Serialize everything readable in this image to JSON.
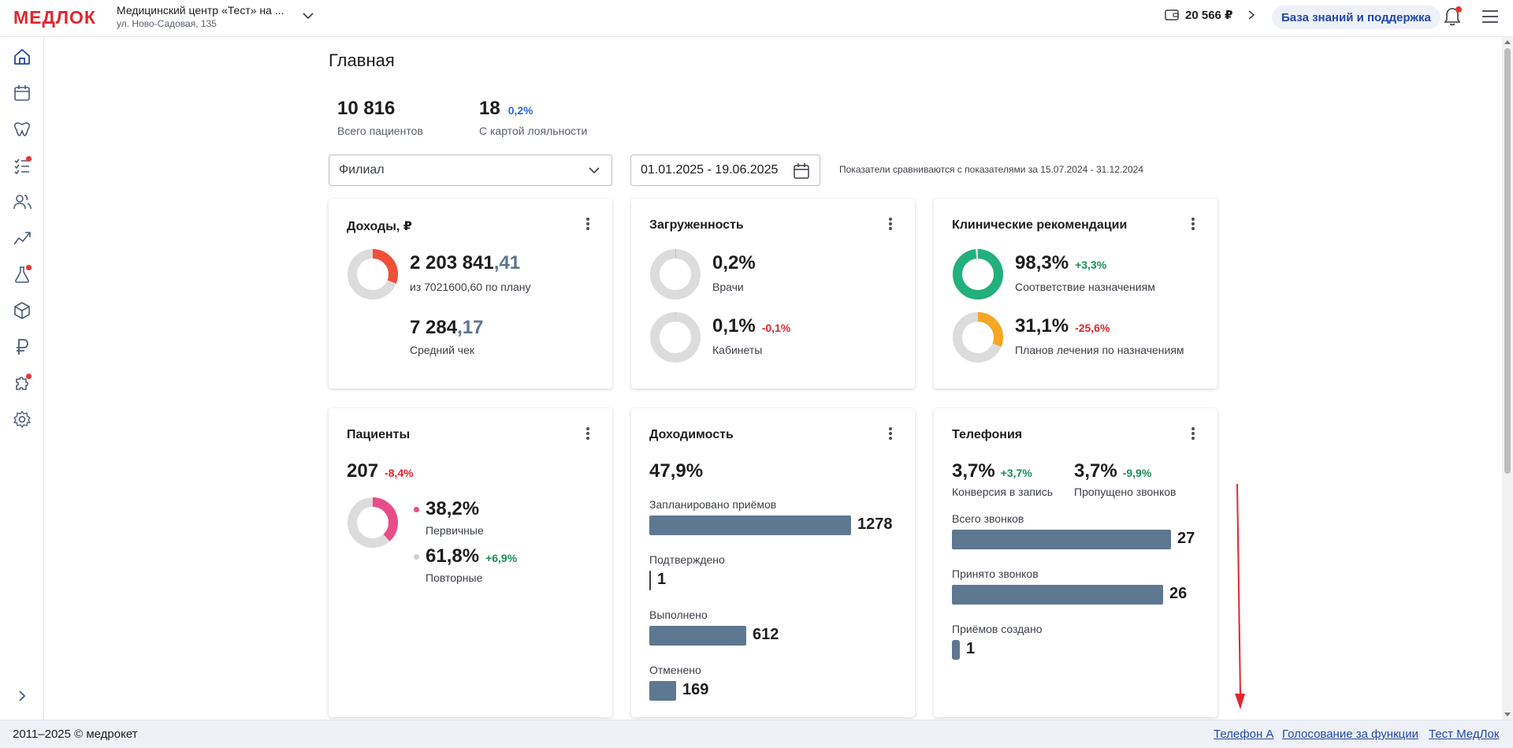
{
  "header": {
    "logo": "МЕДЛОК",
    "org_name": "Медицинский центр «Тест» на ...",
    "org_address": "ул. Ново-Садовая, 135",
    "balance": "20 566 ₽",
    "knowledge_base": "База знаний и поддержка"
  },
  "sidebar": {
    "items": [
      "home-icon",
      "calendar-icon",
      "dental-icon",
      "tasks-icon",
      "users-icon",
      "analytics-icon",
      "lab-flask-icon",
      "warehouse-box-icon",
      "ruble-icon",
      "puzzle-icon",
      "settings-gear-icon"
    ]
  },
  "page": {
    "title": "Главная",
    "total_patients_value": "10 816",
    "total_patients_label": "Всего пациентов",
    "loyalty_value": "18",
    "loyalty_delta": "0,2%",
    "loyalty_label": "С картой лояльности"
  },
  "filters": {
    "branch_placeholder": "Филиал",
    "date_range": "01.01.2025 - 19.06.2025",
    "compare_note": "Показатели сравниваются с показателями за 15.07.2024 - 31.12.2024"
  },
  "cards": {
    "income": {
      "title": "Доходы, ₽",
      "amount_int": "2 203 841",
      "amount_frac": ",41",
      "plan_text": "из 7021600,60 по плану",
      "plan_fraction": 0.31,
      "avg_int": "7 284",
      "avg_frac": ",17",
      "avg_label": "Средний чек"
    },
    "load": {
      "title": "Загруженность",
      "doctors_value": "0,2%",
      "doctors_fraction": 0.002,
      "doctors_label": "Врачи",
      "rooms_value": "0,1%",
      "rooms_fraction": 0.001,
      "rooms_delta": "-0,1%",
      "rooms_label": "Кабинеты"
    },
    "clinical": {
      "title": "Клинические рекомендации",
      "compliance_value": "98,3%",
      "compliance_fraction": 0.983,
      "compliance_delta": "+3,3%",
      "compliance_label": "Соответствие назначениям",
      "plans_value": "31,1%",
      "plans_fraction": 0.311,
      "plans_delta": "-25,6%",
      "plans_label": "Планов лечения по назначениям"
    },
    "patients": {
      "title": "Пациенты",
      "total": "207",
      "total_delta": "-8,4%",
      "primary_value": "38,2%",
      "primary_fraction": 0.382,
      "primary_label": "Первичные",
      "repeat_value": "61,8%",
      "repeat_delta": "+6,9%",
      "repeat_label": "Повторные"
    },
    "profitability": {
      "title": "Доходимость",
      "value": "47,9%",
      "rows": [
        {
          "label": "Запланировано приёмов",
          "value": "1278",
          "num": 1278
        },
        {
          "label": "Подтверждено",
          "value": "1",
          "num": 1
        },
        {
          "label": "Выполнено",
          "value": "612",
          "num": 612
        },
        {
          "label": "Отменено",
          "value": "169",
          "num": 169
        }
      ]
    },
    "telephony": {
      "title": "Телефония",
      "conversion_value": "3,7%",
      "conversion_delta": "+3,7%",
      "conversion_label": "Конверсия в запись",
      "missed_value": "3,7%",
      "missed_delta": "-9,9%",
      "missed_label": "Пропущено звонков",
      "rows": [
        {
          "label": "Всего звонков",
          "value": "27",
          "num": 27
        },
        {
          "label": "Принято звонков",
          "value": "26",
          "num": 26
        },
        {
          "label": "Приёмов создано",
          "value": "1",
          "num": 1
        }
      ]
    }
  },
  "footer": {
    "copyright": "2011–2025 © медрокет",
    "links": [
      "Телефон А",
      "Голосование за функции",
      "Тест МедЛок"
    ]
  },
  "colors": {
    "brand_red": "#e0272e",
    "brand_blue": "#2d6bd4",
    "bar": "#5e7891",
    "donut_red": "#f0503a",
    "donut_green": "#22b07d",
    "donut_orange": "#f5a623",
    "donut_pink": "#ea4c89",
    "donut_track": "#dcdcdc"
  }
}
